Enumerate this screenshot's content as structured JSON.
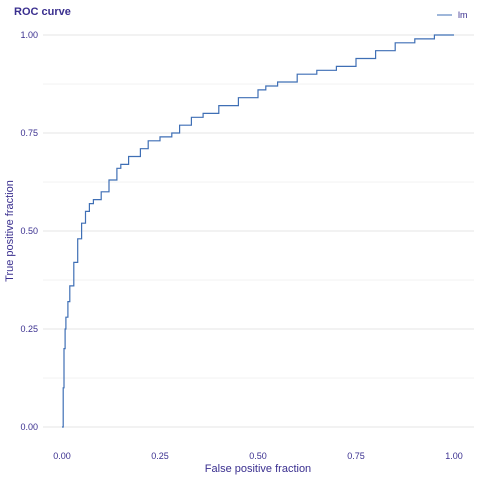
{
  "chart_data": {
    "type": "line",
    "title": "ROC curve",
    "xlabel": "False positive fraction",
    "ylabel": "True positive fraction",
    "xlim": [
      0,
      1
    ],
    "ylim": [
      0,
      1
    ],
    "x_ticks": [
      0,
      0.25,
      0.5,
      0.75,
      1
    ],
    "x_tick_labels": [
      "0.00",
      "0.25",
      "0.50",
      "0.75",
      "1.00"
    ],
    "y_ticks": [
      0,
      0.25,
      0.5,
      0.75,
      1
    ],
    "y_tick_labels": [
      "0.00",
      "0.25",
      "0.50",
      "0.75",
      "1.00"
    ],
    "grid": true,
    "legend": {
      "position": "top-right",
      "entries": [
        "lm"
      ]
    },
    "colors": {
      "line": "#3f6fb5",
      "text": "#3a2f8f",
      "grid": "#e6e6e6"
    },
    "series": [
      {
        "name": "lm",
        "x": [
          0,
          0.003,
          0.005,
          0.008,
          0.01,
          0.015,
          0.02,
          0.03,
          0.04,
          0.05,
          0.06,
          0.07,
          0.08,
          0.1,
          0.12,
          0.14,
          0.15,
          0.17,
          0.2,
          0.22,
          0.25,
          0.28,
          0.3,
          0.33,
          0.36,
          0.4,
          0.45,
          0.5,
          0.52,
          0.55,
          0.6,
          0.65,
          0.7,
          0.75,
          0.8,
          0.85,
          0.9,
          0.95,
          1
        ],
        "y": [
          0,
          0.1,
          0.2,
          0.25,
          0.28,
          0.32,
          0.36,
          0.42,
          0.48,
          0.52,
          0.55,
          0.57,
          0.58,
          0.6,
          0.63,
          0.66,
          0.67,
          0.69,
          0.71,
          0.73,
          0.74,
          0.75,
          0.77,
          0.79,
          0.8,
          0.82,
          0.84,
          0.86,
          0.87,
          0.88,
          0.9,
          0.91,
          0.92,
          0.94,
          0.96,
          0.98,
          0.99,
          1.0,
          1.0
        ]
      }
    ]
  }
}
